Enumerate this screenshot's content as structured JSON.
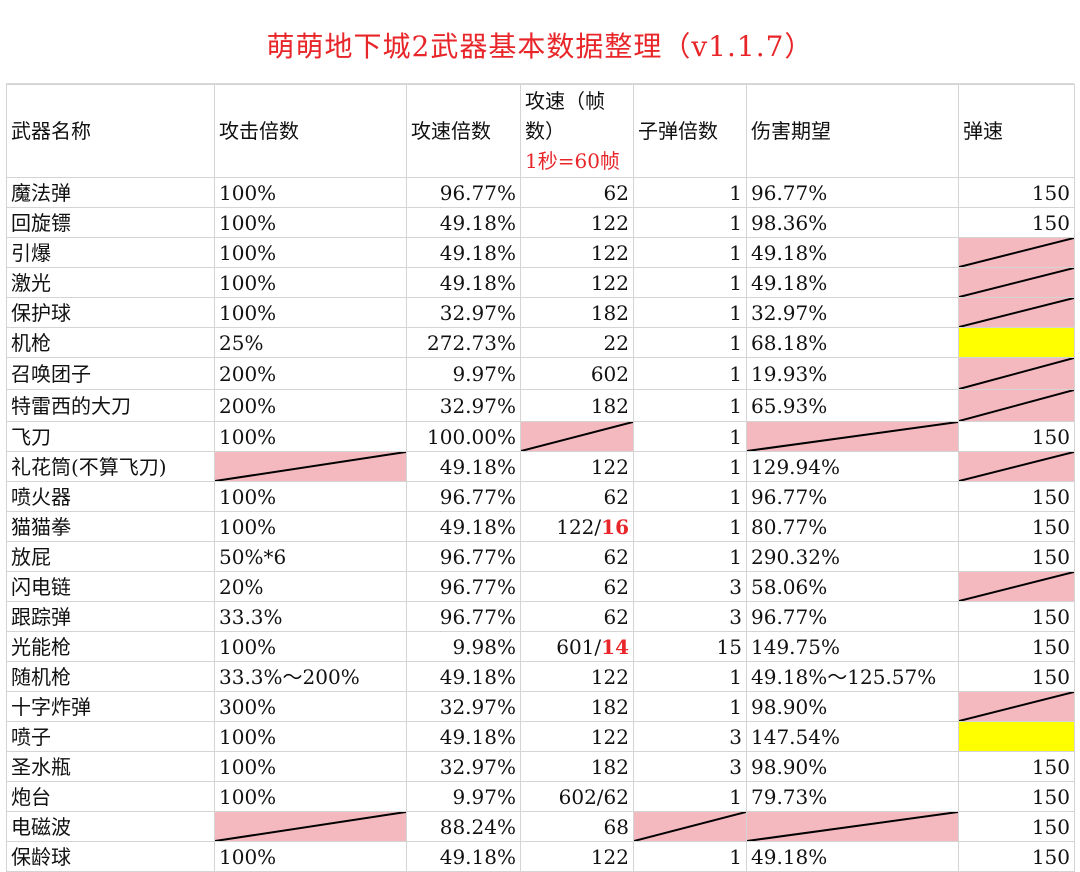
{
  "title": "萌萌地下城2武器基本数据整理（v1.1.7）",
  "headers": {
    "name": "武器名称",
    "atk_mult": "攻击倍数",
    "spd_mult": "攻速倍数",
    "spd_frames_line1": "攻速（帧",
    "spd_frames_line2": "数）",
    "spd_frames_note": "1秒=60帧",
    "bullet_mult": "子弹倍数",
    "dmg_expect": "伤害期望",
    "bullet_speed": "弹速"
  },
  "colors": {
    "title": "#e8262a",
    "na_fill": "#f4b8bf",
    "highlight": "#ffff00",
    "grid": "#d4d4d4"
  },
  "rows": [
    {
      "name": "魔法弹",
      "atk": "100%",
      "spd": "96.77%",
      "frames": "62",
      "bullets": "1",
      "dmg": "96.77%",
      "speed": "150"
    },
    {
      "name": "回旋镖",
      "atk": "100%",
      "spd": "49.18%",
      "frames": "122",
      "bullets": "1",
      "dmg": "98.36%",
      "speed": "150"
    },
    {
      "name": "引爆",
      "atk": "100%",
      "spd": "49.18%",
      "frames": "122",
      "bullets": "1",
      "dmg": "49.18%",
      "speed": ""
    },
    {
      "name": "激光",
      "atk": "100%",
      "spd": "49.18%",
      "frames": "122",
      "bullets": "1",
      "dmg": "49.18%",
      "speed": ""
    },
    {
      "name": "保护球",
      "atk": "100%",
      "spd": "32.97%",
      "frames": "182",
      "bullets": "1",
      "dmg": "32.97%",
      "speed": ""
    },
    {
      "name": "机枪",
      "atk": "25%",
      "spd": "272.73%",
      "frames": "22",
      "bullets": "1",
      "dmg": "68.18%",
      "speed": ""
    },
    {
      "name": "召唤团子",
      "atk": "200%",
      "spd": "9.97%",
      "frames": "602",
      "bullets": "1",
      "dmg": "19.93%",
      "speed": ""
    },
    {
      "name": "特雷西的大刀",
      "atk": "200%",
      "spd": "32.97%",
      "frames": "182",
      "bullets": "1",
      "dmg": "65.93%",
      "speed": ""
    },
    {
      "name": "飞刀",
      "atk": "100%",
      "spd": "100.00%",
      "frames": "",
      "bullets": "1",
      "dmg": "",
      "speed": "150"
    },
    {
      "name": "礼花筒(不算飞刀)",
      "atk": "",
      "spd": "49.18%",
      "frames": "122",
      "bullets": "1",
      "dmg": "129.94%",
      "speed": ""
    },
    {
      "name": "喷火器",
      "atk": "100%",
      "spd": "96.77%",
      "frames": "62",
      "bullets": "1",
      "dmg": "96.77%",
      "speed": "150"
    },
    {
      "name": "猫猫拳",
      "atk": "100%",
      "spd": "49.18%",
      "frames": "122/",
      "frames_red": "16",
      "bullets": "1",
      "dmg": "80.77%",
      "speed": "150"
    },
    {
      "name": "放屁",
      "atk": "50%*6",
      "spd": "96.77%",
      "frames": "62",
      "bullets": "1",
      "dmg": "290.32%",
      "speed": "150"
    },
    {
      "name": "闪电链",
      "atk": "20%",
      "spd": "96.77%",
      "frames": "62",
      "bullets": "3",
      "dmg": "58.06%",
      "speed": ""
    },
    {
      "name": "跟踪弹",
      "atk": "33.3%",
      "spd": "96.77%",
      "frames": "62",
      "bullets": "3",
      "dmg": "96.77%",
      "speed": "150"
    },
    {
      "name": "光能枪",
      "atk": "100%",
      "spd": "9.98%",
      "frames": "601/",
      "frames_red": "14",
      "bullets": "15",
      "dmg": "149.75%",
      "speed": "150"
    },
    {
      "name": "随机枪",
      "atk": "33.3%～200%",
      "spd": "49.18%",
      "frames": "122",
      "bullets": "1",
      "dmg": "49.18%～125.57%",
      "speed": "150"
    },
    {
      "name": "十字炸弹",
      "atk": "300%",
      "spd": "32.97%",
      "frames": "182",
      "bullets": "1",
      "dmg": "98.90%",
      "speed": ""
    },
    {
      "name": "喷子",
      "atk": "100%",
      "spd": "49.18%",
      "frames": "122",
      "bullets": "3",
      "dmg": "147.54%",
      "speed": ""
    },
    {
      "name": "圣水瓶",
      "atk": "100%",
      "spd": "32.97%",
      "frames": "182",
      "bullets": "3",
      "dmg": "98.90%",
      "speed": "150"
    },
    {
      "name": "炮台",
      "atk": "100%",
      "spd": "9.97%",
      "frames": "602/62",
      "bullets": "1",
      "dmg": "79.73%",
      "speed": "150"
    },
    {
      "name": "电磁波",
      "atk": "",
      "spd": "88.24%",
      "frames": "68",
      "bullets": "",
      "dmg": "",
      "speed": "150"
    },
    {
      "name": "保龄球",
      "atk": "100%",
      "spd": "49.18%",
      "frames": "122",
      "bullets": "1",
      "dmg": "49.18%",
      "speed": "150"
    }
  ]
}
